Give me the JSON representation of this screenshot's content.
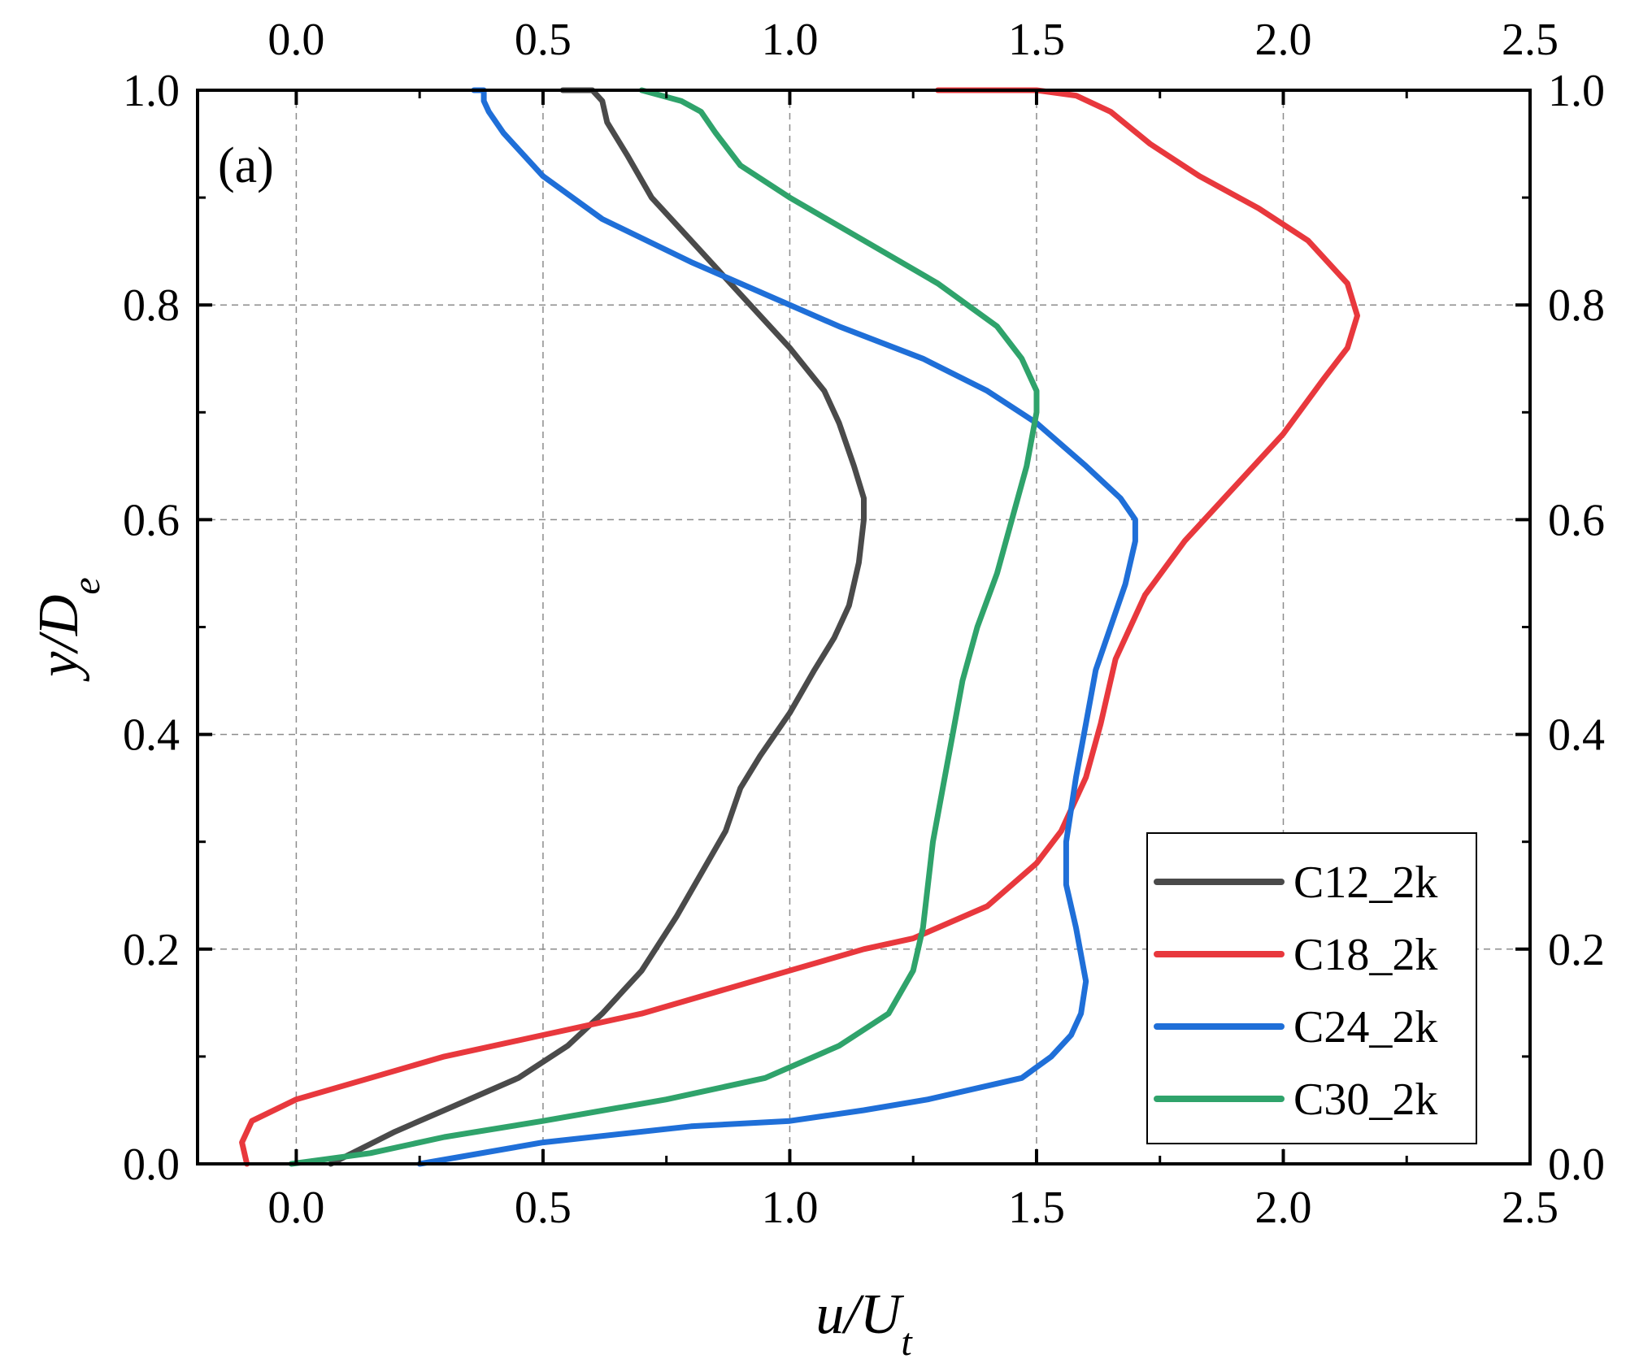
{
  "chart_data": {
    "type": "line",
    "title": "",
    "panel_label": "(a)",
    "xlabel": "u/U",
    "xlabel_sub": "t",
    "ylabel": "y/D",
    "ylabel_sub": "e",
    "xlim": [
      -0.2,
      2.5
    ],
    "ylim": [
      0.0,
      1.0
    ],
    "xticks": [
      0.0,
      0.5,
      1.0,
      1.5,
      2.0,
      2.5
    ],
    "xtick_labels": [
      "0.0",
      "0.5",
      "1.0",
      "1.5",
      "2.0",
      "2.5"
    ],
    "yticks": [
      0.0,
      0.2,
      0.4,
      0.6,
      0.8,
      1.0
    ],
    "ytick_labels": [
      "0.0",
      "0.2",
      "0.4",
      "0.6",
      "0.8",
      "1.0"
    ],
    "grid": true,
    "legend_position": "bottom-right",
    "series": [
      {
        "name": "C12_2k",
        "color": "#4a4a4a",
        "points": [
          [
            0.07,
            0.0
          ],
          [
            0.2,
            0.03
          ],
          [
            0.3,
            0.05
          ],
          [
            0.45,
            0.08
          ],
          [
            0.55,
            0.11
          ],
          [
            0.62,
            0.14
          ],
          [
            0.7,
            0.18
          ],
          [
            0.77,
            0.23
          ],
          [
            0.82,
            0.27
          ],
          [
            0.87,
            0.31
          ],
          [
            0.9,
            0.35
          ],
          [
            0.94,
            0.38
          ],
          [
            1.0,
            0.42
          ],
          [
            1.05,
            0.46
          ],
          [
            1.09,
            0.49
          ],
          [
            1.12,
            0.52
          ],
          [
            1.14,
            0.56
          ],
          [
            1.15,
            0.6
          ],
          [
            1.15,
            0.62
          ],
          [
            1.13,
            0.65
          ],
          [
            1.1,
            0.69
          ],
          [
            1.07,
            0.72
          ],
          [
            1.0,
            0.76
          ],
          [
            0.9,
            0.81
          ],
          [
            0.8,
            0.86
          ],
          [
            0.72,
            0.9
          ],
          [
            0.67,
            0.94
          ],
          [
            0.63,
            0.97
          ],
          [
            0.62,
            0.99
          ],
          [
            0.6,
            1.0
          ],
          [
            0.54,
            1.0
          ]
        ]
      },
      {
        "name": "C18_2k",
        "color": "#e8383d",
        "points": [
          [
            -0.1,
            0.0
          ],
          [
            -0.11,
            0.02
          ],
          [
            -0.09,
            0.04
          ],
          [
            0.0,
            0.06
          ],
          [
            0.15,
            0.08
          ],
          [
            0.3,
            0.1
          ],
          [
            0.5,
            0.12
          ],
          [
            0.7,
            0.14
          ],
          [
            0.85,
            0.16
          ],
          [
            1.0,
            0.18
          ],
          [
            1.15,
            0.2
          ],
          [
            1.25,
            0.21
          ],
          [
            1.4,
            0.24
          ],
          [
            1.5,
            0.28
          ],
          [
            1.55,
            0.31
          ],
          [
            1.6,
            0.36
          ],
          [
            1.63,
            0.41
          ],
          [
            1.66,
            0.47
          ],
          [
            1.72,
            0.53
          ],
          [
            1.8,
            0.58
          ],
          [
            1.92,
            0.64
          ],
          [
            2.0,
            0.68
          ],
          [
            2.08,
            0.73
          ],
          [
            2.13,
            0.76
          ],
          [
            2.15,
            0.79
          ],
          [
            2.13,
            0.82
          ],
          [
            2.05,
            0.86
          ],
          [
            1.95,
            0.89
          ],
          [
            1.83,
            0.92
          ],
          [
            1.73,
            0.95
          ],
          [
            1.65,
            0.98
          ],
          [
            1.58,
            0.995
          ],
          [
            1.5,
            1.0
          ],
          [
            1.3,
            1.0
          ]
        ]
      },
      {
        "name": "C24_2k",
        "color": "#1f6fd8",
        "points": [
          [
            0.25,
            0.0
          ],
          [
            0.5,
            0.02
          ],
          [
            0.8,
            0.035
          ],
          [
            1.0,
            0.04
          ],
          [
            1.15,
            0.05
          ],
          [
            1.28,
            0.06
          ],
          [
            1.47,
            0.08
          ],
          [
            1.53,
            0.1
          ],
          [
            1.57,
            0.12
          ],
          [
            1.59,
            0.14
          ],
          [
            1.6,
            0.17
          ],
          [
            1.58,
            0.22
          ],
          [
            1.56,
            0.26
          ],
          [
            1.56,
            0.3
          ],
          [
            1.58,
            0.36
          ],
          [
            1.6,
            0.41
          ],
          [
            1.62,
            0.46
          ],
          [
            1.65,
            0.5
          ],
          [
            1.68,
            0.54
          ],
          [
            1.7,
            0.58
          ],
          [
            1.7,
            0.6
          ],
          [
            1.67,
            0.62
          ],
          [
            1.6,
            0.65
          ],
          [
            1.5,
            0.69
          ],
          [
            1.4,
            0.72
          ],
          [
            1.27,
            0.75
          ],
          [
            1.1,
            0.78
          ],
          [
            0.95,
            0.81
          ],
          [
            0.8,
            0.84
          ],
          [
            0.62,
            0.88
          ],
          [
            0.5,
            0.92
          ],
          [
            0.42,
            0.96
          ],
          [
            0.39,
            0.98
          ],
          [
            0.38,
            0.99
          ],
          [
            0.38,
            1.0
          ],
          [
            0.36,
            1.0
          ]
        ]
      },
      {
        "name": "C30_2k",
        "color": "#2fa36b",
        "points": [
          [
            -0.01,
            0.0
          ],
          [
            0.15,
            0.01
          ],
          [
            0.3,
            0.025
          ],
          [
            0.5,
            0.04
          ],
          [
            0.75,
            0.06
          ],
          [
            0.95,
            0.08
          ],
          [
            1.1,
            0.11
          ],
          [
            1.2,
            0.14
          ],
          [
            1.25,
            0.18
          ],
          [
            1.27,
            0.22
          ],
          [
            1.28,
            0.26
          ],
          [
            1.29,
            0.3
          ],
          [
            1.31,
            0.35
          ],
          [
            1.33,
            0.4
          ],
          [
            1.35,
            0.45
          ],
          [
            1.38,
            0.5
          ],
          [
            1.42,
            0.55
          ],
          [
            1.45,
            0.6
          ],
          [
            1.48,
            0.65
          ],
          [
            1.5,
            0.7
          ],
          [
            1.5,
            0.72
          ],
          [
            1.47,
            0.75
          ],
          [
            1.42,
            0.78
          ],
          [
            1.3,
            0.82
          ],
          [
            1.15,
            0.86
          ],
          [
            1.0,
            0.9
          ],
          [
            0.9,
            0.93
          ],
          [
            0.85,
            0.96
          ],
          [
            0.82,
            0.98
          ],
          [
            0.78,
            0.99
          ],
          [
            0.7,
            1.0
          ]
        ]
      }
    ]
  }
}
